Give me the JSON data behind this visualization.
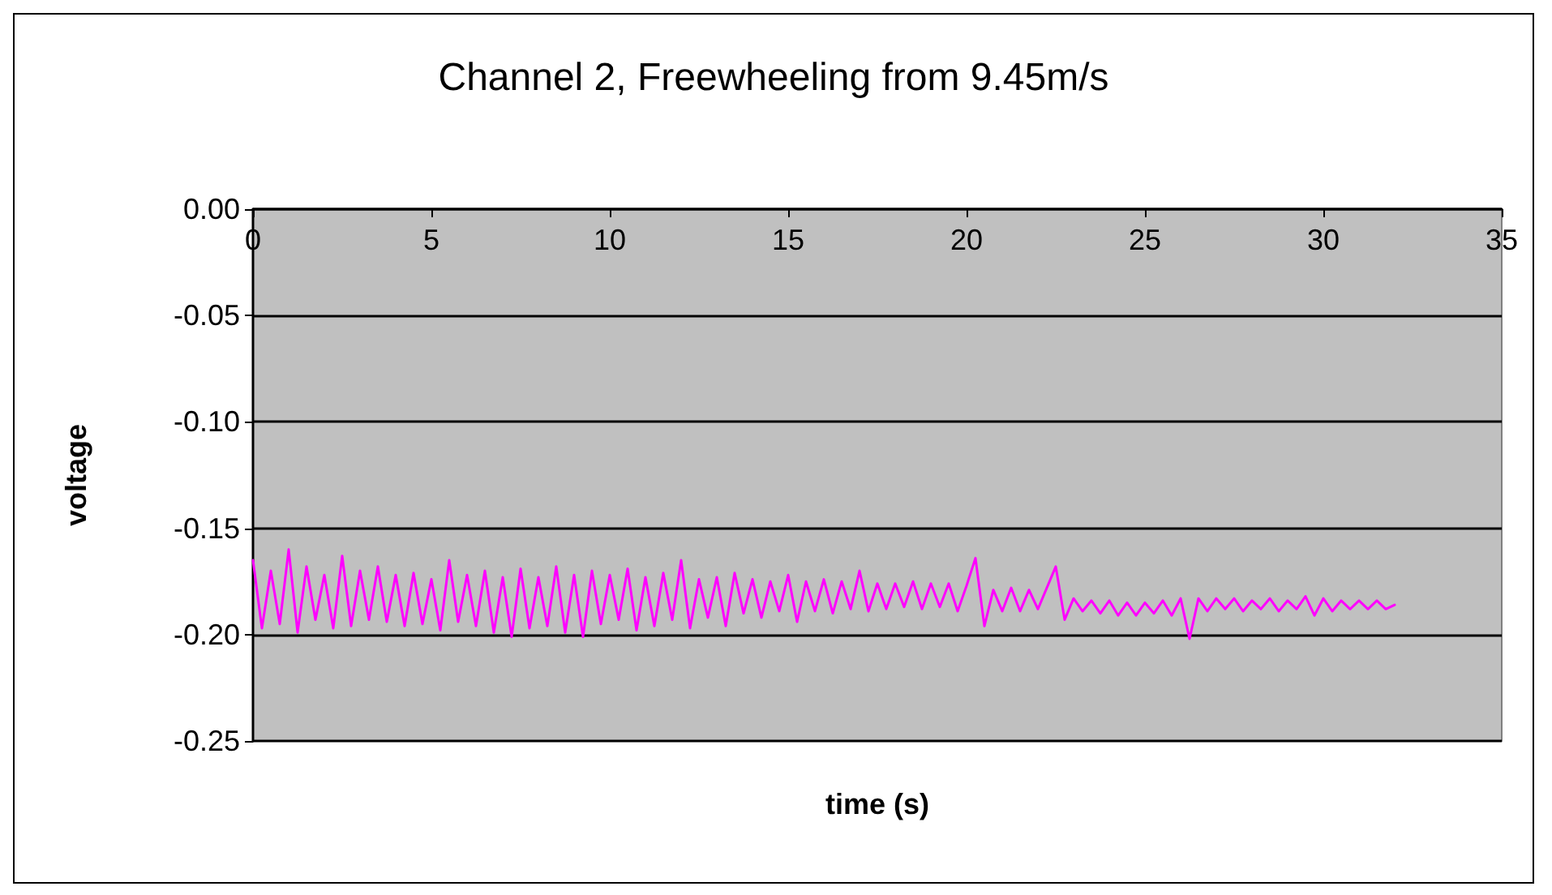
{
  "chart_data": {
    "type": "line",
    "title": "Channel 2, Freewheeling from 9.45m/s",
    "xlabel": "time (s)",
    "ylabel": "voltage",
    "xlim": [
      0,
      35
    ],
    "xticks": [
      0,
      5,
      10,
      15,
      20,
      25,
      30,
      35
    ],
    "ylim": [
      -0.25,
      0
    ],
    "yticks": [
      {
        "value": -0.25,
        "label": "-0.25"
      },
      {
        "value": -0.2,
        "label": "-0.20"
      },
      {
        "value": -0.15,
        "label": "-0.15"
      },
      {
        "value": -0.1,
        "label": "-0.10"
      },
      {
        "value": -0.05,
        "label": "-0.05"
      },
      {
        "value": 0,
        "label": "0.00"
      }
    ],
    "grid": "y",
    "marker": "none",
    "line_style": "solid",
    "x": [
      0,
      0.25,
      0.5,
      0.75,
      1,
      1.25,
      1.5,
      1.75,
      2,
      2.25,
      2.5,
      2.75,
      3,
      3.25,
      3.5,
      3.75,
      4,
      4.25,
      4.5,
      4.75,
      5,
      5.25,
      5.5,
      5.75,
      6,
      6.25,
      6.5,
      6.75,
      7,
      7.25,
      7.5,
      7.75,
      8,
      8.25,
      8.5,
      8.75,
      9,
      9.25,
      9.5,
      9.75,
      10,
      10.25,
      10.5,
      10.75,
      11,
      11.25,
      11.5,
      11.75,
      12,
      12.25,
      12.5,
      12.75,
      13,
      13.25,
      13.5,
      13.75,
      14,
      14.25,
      14.5,
      14.75,
      15,
      15.25,
      15.5,
      15.75,
      16,
      16.25,
      16.5,
      16.75,
      17,
      17.25,
      17.5,
      17.75,
      18,
      18.25,
      18.5,
      18.75,
      19,
      19.25,
      19.5,
      19.75,
      20,
      20.25,
      20.5,
      20.75,
      21,
      21.25,
      21.5,
      21.75,
      22,
      22.25,
      22.5,
      22.75,
      23,
      23.25,
      23.5,
      23.75,
      24,
      24.25,
      24.5,
      24.75,
      25,
      25.25,
      25.5,
      25.75,
      26,
      26.25,
      26.5,
      26.75,
      27,
      27.25,
      27.5,
      27.75,
      28,
      28.25,
      28.5,
      28.75,
      29,
      29.25,
      29.5,
      29.75,
      30,
      30.25,
      30.5,
      30.75,
      31,
      31.25,
      31.5,
      31.75,
      32
    ],
    "series": [
      {
        "color": "#ff00ff",
        "values": [
          -0.165,
          -0.197,
          -0.17,
          -0.195,
          -0.16,
          -0.199,
          -0.168,
          -0.193,
          -0.172,
          -0.197,
          -0.163,
          -0.196,
          -0.17,
          -0.193,
          -0.168,
          -0.194,
          -0.172,
          -0.196,
          -0.171,
          -0.195,
          -0.174,
          -0.198,
          -0.165,
          -0.194,
          -0.172,
          -0.196,
          -0.17,
          -0.199,
          -0.173,
          -0.201,
          -0.169,
          -0.197,
          -0.173,
          -0.196,
          -0.168,
          -0.199,
          -0.172,
          -0.201,
          -0.17,
          -0.195,
          -0.172,
          -0.193,
          -0.169,
          -0.198,
          -0.173,
          -0.196,
          -0.171,
          -0.193,
          -0.165,
          -0.197,
          -0.174,
          -0.192,
          -0.173,
          -0.196,
          -0.171,
          -0.19,
          -0.174,
          -0.192,
          -0.175,
          -0.189,
          -0.172,
          -0.194,
          -0.175,
          -0.189,
          -0.174,
          -0.19,
          -0.175,
          -0.188,
          -0.17,
          -0.189,
          -0.176,
          -0.188,
          -0.176,
          -0.187,
          -0.175,
          -0.188,
          -0.176,
          -0.187,
          -0.176,
          -0.189,
          -0.177,
          -0.164,
          -0.196,
          -0.179,
          -0.189,
          -0.178,
          -0.189,
          -0.179,
          -0.188,
          -0.178,
          -0.168,
          -0.193,
          -0.183,
          -0.189,
          -0.184,
          -0.19,
          -0.184,
          -0.191,
          -0.185,
          -0.191,
          -0.185,
          -0.19,
          -0.184,
          -0.191,
          -0.183,
          -0.202,
          -0.183,
          -0.189,
          -0.183,
          -0.188,
          -0.183,
          -0.189,
          -0.184,
          -0.188,
          -0.183,
          -0.189,
          -0.184,
          -0.188,
          -0.182,
          -0.191,
          -0.183,
          -0.189,
          -0.184,
          -0.188,
          -0.184,
          -0.188,
          -0.184,
          -0.188,
          -0.186
        ]
      }
    ]
  }
}
